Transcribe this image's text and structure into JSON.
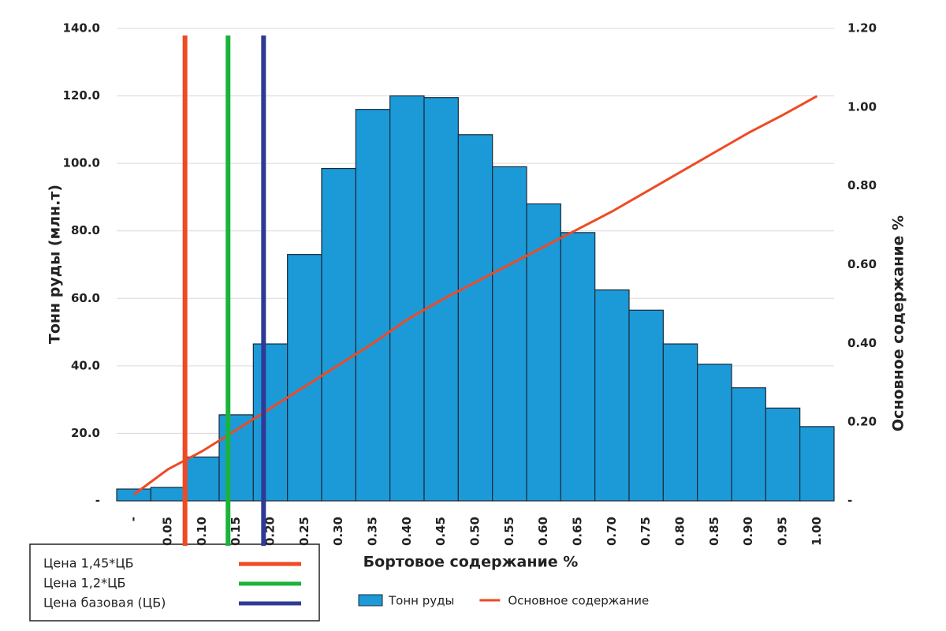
{
  "chart_data": {
    "type": "bar",
    "x_label": "Бортовое содержание  %",
    "y_label": "Тонн руды (млн.т)",
    "y2_label": "Основное содержание  %",
    "categories": [
      "-",
      "0.05",
      "0.10",
      "0.15",
      "0.20",
      "0.25",
      "0.30",
      "0.35",
      "0.40",
      "0.45",
      "0.50",
      "0.55",
      "0.60",
      "0.65",
      "0.70",
      "0.75",
      "0.80",
      "0.85",
      "0.90",
      "0.95",
      "1.00"
    ],
    "xlim": [
      -0.025,
      1.025
    ],
    "series": [
      {
        "name": "Тонн руды",
        "type": "bar",
        "color": "#1c9ad8",
        "values": [
          3.5,
          4,
          13,
          25.5,
          46.5,
          73,
          98.5,
          116,
          120,
          119.5,
          108.5,
          99,
          88,
          79.5,
          62.5,
          56.5,
          46.5,
          40.5,
          33.5,
          27.5,
          22
        ]
      },
      {
        "name": "Основное содержание",
        "type": "line",
        "axis": "y2",
        "color": "#ef4a23",
        "values": [
          0.016,
          0.08,
          0.126,
          0.18,
          0.235,
          0.29,
          0.345,
          0.4,
          0.46,
          0.51,
          0.555,
          0.6,
          0.645,
          0.69,
          0.735,
          0.785,
          0.835,
          0.885,
          0.935,
          0.98,
          1.028
        ]
      }
    ],
    "ylim": [
      0,
      140
    ],
    "yticks": [
      {
        "value": 0,
        "label": "-"
      },
      {
        "value": 20,
        "label": "20.0"
      },
      {
        "value": 40,
        "label": "40.0"
      },
      {
        "value": 60,
        "label": "60.0"
      },
      {
        "value": 80,
        "label": "80.0"
      },
      {
        "value": 100,
        "label": "100.0"
      },
      {
        "value": 120,
        "label": "120.0"
      },
      {
        "value": 140,
        "label": "140.0"
      }
    ],
    "y2lim": [
      0,
      1.2
    ],
    "y2ticks": [
      {
        "value": 0,
        "label": "-"
      },
      {
        "value": 0.2,
        "label": "0.20"
      },
      {
        "value": 0.4,
        "label": "0.40"
      },
      {
        "value": 0.6,
        "label": "0.60"
      },
      {
        "value": 0.8,
        "label": "0.80"
      },
      {
        "value": 1,
        "label": "1.00"
      },
      {
        "value": 1.2,
        "label": "1.20"
      }
    ],
    "grid": true,
    "reference_lines": [
      {
        "name": "Цена 1,45*ЦБ",
        "color": "#ef4a23",
        "x": 0.075
      },
      {
        "name": "Цена 1,2*ЦБ",
        "color": "#1bb33b",
        "x": 0.138
      },
      {
        "name": "Цена базовая (ЦБ)",
        "color": "#2e3a94",
        "x": 0.19
      }
    ]
  }
}
